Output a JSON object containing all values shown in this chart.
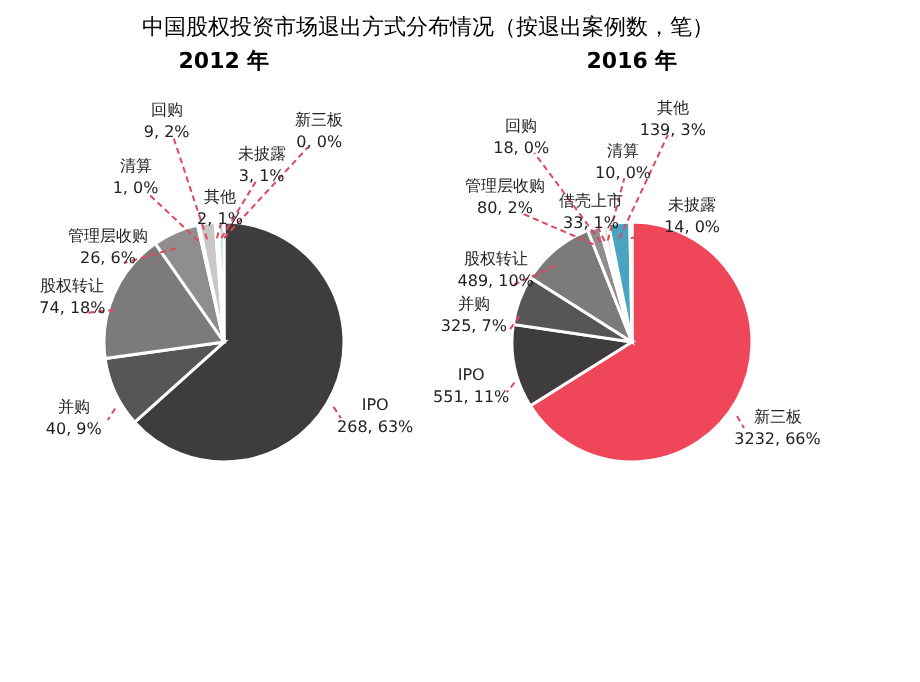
{
  "chart_data": [
    {
      "type": "pie",
      "title": "中国股权投资市场退出方式分布情况（按退出案例数，笔）",
      "subtitle": "2012 年",
      "categories": [
        "新三板",
        "IPO",
        "并购",
        "股权转让",
        "管理层收购",
        "清算",
        "回购",
        "其他",
        "未披露"
      ],
      "values": [
        0,
        268,
        40,
        74,
        26,
        1,
        9,
        2,
        3
      ],
      "value_labels": [
        "0, 0%",
        "268, 63%",
        "40, 9%",
        "74, 18%",
        "26, 6%",
        "1, 0%",
        "9, 2%",
        "2, 1%",
        "3, 1%"
      ],
      "colors": [
        "#f0465a",
        "#3f3c3d",
        "#575556",
        "#7d7a7b",
        "#8f8d8e",
        "#a8a8a8",
        "#c8c8c8",
        "#e0e0e0",
        "#a9d5e3"
      ]
    },
    {
      "type": "pie",
      "subtitle": "2016 年",
      "categories": [
        "新三板",
        "IPO",
        "并购",
        "股权转让",
        "管理层收购",
        "回购",
        "借壳上市",
        "清算",
        "其他",
        "未披露"
      ],
      "values": [
        3232,
        551,
        325,
        489,
        80,
        18,
        33,
        10,
        139,
        14
      ],
      "value_labels": [
        "3232, 66%",
        "551, 11%",
        "325, 7%",
        "489, 10%",
        "80, 2%",
        "18, 0%",
        "33, 1%",
        "10, 0%",
        "139, 3%",
        "14, 0%"
      ],
      "colors": [
        "#f0465a",
        "#3f3c3d",
        "#575556",
        "#7d7a7b",
        "#8f8d8e",
        "#c8c8c8",
        "#e0e0e0",
        "#a8a8a8",
        "#4aa3c0",
        "#a9d5e3"
      ]
    }
  ]
}
